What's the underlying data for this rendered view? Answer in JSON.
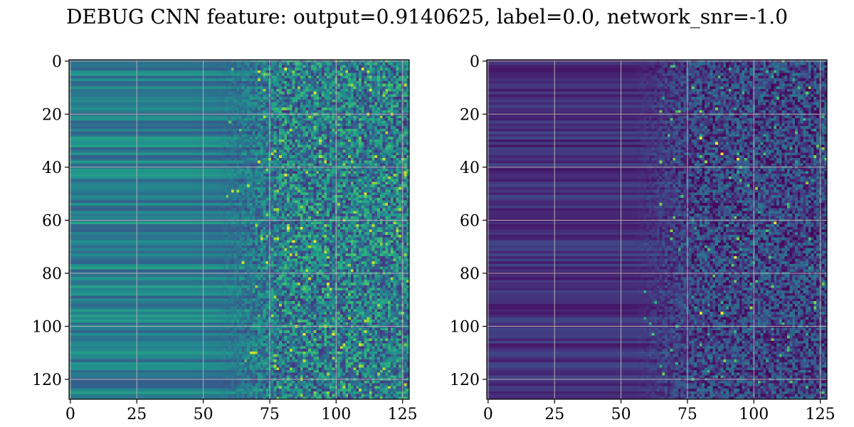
{
  "figure": {
    "title": "DEBUG CNN feature: output=0.9140625, label=0.0, network_snr=-1.0"
  },
  "chart_data": [
    {
      "type": "heatmap",
      "title": "",
      "xlabel": "",
      "ylabel": "",
      "rows": 128,
      "cols": 128,
      "xlim": [
        -0.5,
        127.5
      ],
      "ylim": [
        127.5,
        -0.5
      ],
      "x_ticks": [
        0,
        25,
        50,
        75,
        100,
        125
      ],
      "x_tick_labels": [
        "0",
        "25",
        "50",
        "75",
        "100",
        "125"
      ],
      "y_ticks": [
        0,
        20,
        40,
        60,
        80,
        100,
        120
      ],
      "y_tick_labels": [
        "0",
        "20",
        "40",
        "60",
        "80",
        "100",
        "120"
      ],
      "grid": true,
      "colormap": "viridis",
      "pattern": "horizontal row bands on the left, noisy speckles from column ~75 onward with bright yellow spots",
      "bright_spots": [
        [
          3,
          81
        ],
        [
          3,
          110
        ],
        [
          11,
          113
        ],
        [
          43,
          81
        ],
        [
          63,
          82
        ],
        [
          63,
          87
        ],
        [
          68,
          84
        ],
        [
          68,
          92
        ],
        [
          103,
          88
        ],
        [
          103,
          99
        ]
      ]
    },
    {
      "type": "heatmap",
      "title": "",
      "xlabel": "",
      "ylabel": "",
      "rows": 128,
      "cols": 128,
      "xlim": [
        -0.5,
        127.5
      ],
      "ylim": [
        127.5,
        -0.5
      ],
      "x_ticks": [
        0,
        25,
        50,
        75,
        100,
        125
      ],
      "x_tick_labels": [
        "0",
        "25",
        "50",
        "75",
        "100",
        "125"
      ],
      "y_ticks": [
        0,
        20,
        40,
        60,
        80,
        100,
        120
      ],
      "y_tick_labels": [
        "0",
        "20",
        "40",
        "60",
        "80",
        "100",
        "120"
      ],
      "grid": true,
      "colormap": "viridis",
      "pattern": "mostly dark purple with faint row bands, sparse speckles from column ~75 onward",
      "bright_spots": [
        [
          29,
          80
        ],
        [
          31,
          86
        ],
        [
          35,
          88
        ],
        [
          37,
          94
        ],
        [
          61,
          108
        ],
        [
          95,
          80
        ],
        [
          95,
          88
        ],
        [
          74,
          93
        ]
      ]
    }
  ]
}
